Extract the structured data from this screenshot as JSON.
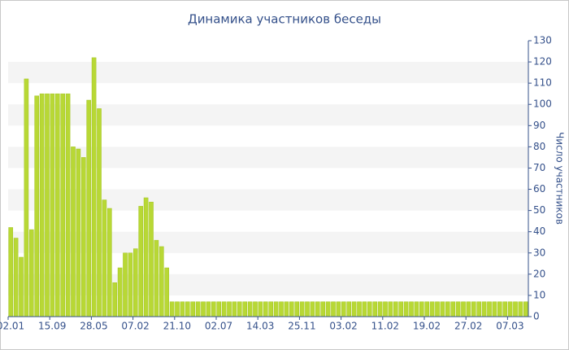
{
  "chart_data": {
    "type": "bar",
    "title": "Динамика участников беседы",
    "y_label": "Число участников",
    "categories": [
      "02.01",
      null,
      null,
      null,
      null,
      null,
      null,
      null,
      "15.09",
      null,
      null,
      null,
      null,
      null,
      null,
      null,
      "28.05",
      null,
      null,
      null,
      null,
      null,
      null,
      null,
      "07.02",
      null,
      null,
      null,
      null,
      null,
      null,
      null,
      "21.10",
      null,
      null,
      null,
      null,
      null,
      null,
      null,
      "02.07",
      null,
      null,
      null,
      null,
      null,
      null,
      null,
      "14.03",
      null,
      null,
      null,
      null,
      null,
      null,
      null,
      "25.11",
      null,
      null,
      null,
      null,
      null,
      null,
      null,
      "03.02",
      null,
      null,
      null,
      null,
      null,
      null,
      null,
      "11.02",
      null,
      null,
      null,
      null,
      null,
      null,
      null,
      "19.02",
      null,
      null,
      null,
      null,
      null,
      null,
      null,
      "27.02",
      null,
      null,
      null,
      null,
      null,
      null,
      null,
      "07.03",
      null,
      null,
      null
    ],
    "values": [
      42,
      37,
      28,
      112,
      41,
      104,
      105,
      105,
      105,
      105,
      105,
      105,
      80,
      79,
      75,
      102,
      122,
      98,
      55,
      51,
      16,
      23,
      30,
      30,
      32,
      52,
      56,
      54,
      36,
      33,
      23,
      7,
      7,
      7,
      7,
      7,
      7,
      7,
      7,
      7,
      7,
      7,
      7,
      7,
      7,
      7,
      7,
      7,
      7,
      7,
      7,
      7,
      7,
      7,
      7,
      7,
      7,
      7,
      7,
      7,
      7,
      7,
      7,
      7,
      7,
      7,
      7,
      7,
      7,
      7,
      7,
      7,
      7,
      7,
      7,
      7,
      7,
      7,
      7,
      7,
      7,
      7,
      7,
      7,
      7,
      7,
      7,
      7,
      7,
      7,
      7,
      7,
      7,
      7,
      7,
      7,
      7,
      7,
      7,
      7
    ],
    "color": "#b8d835",
    "ylim": [
      0,
      130
    ],
    "yticks": [
      0,
      10,
      20,
      30,
      40,
      50,
      60,
      70,
      80,
      90,
      100,
      110,
      120,
      130
    ],
    "grid": "bands",
    "y_axis_side": "right"
  }
}
